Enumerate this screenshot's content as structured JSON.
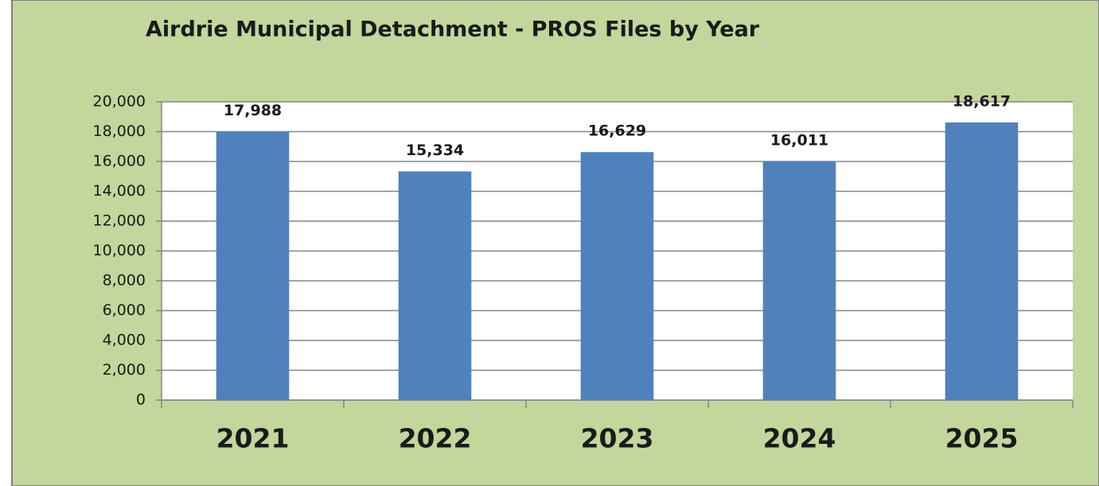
{
  "chart_data": {
    "type": "bar",
    "title": "Airdrie Municipal Detachment - PROS Files by Year",
    "categories": [
      "2021",
      "2022",
      "2023",
      "2024",
      "2025"
    ],
    "values": [
      17988,
      15334,
      16629,
      16011,
      18617
    ],
    "value_labels": [
      "17,988",
      "15,334",
      "16,629",
      "16,011",
      "18,617"
    ],
    "color": "#4f81bd",
    "ylim": [
      0,
      20000
    ],
    "yticks": [
      0,
      {
        "value": 2000,
        "label": "2,000"
      },
      {
        "value": 4000,
        "label": "4,000"
      },
      {
        "value": 6000,
        "label": "6,000"
      },
      {
        "value": 8000,
        "label": "8,000"
      },
      {
        "value": 10000,
        "label": "10,000"
      },
      {
        "value": 12000,
        "label": "12,000"
      },
      {
        "value": 14000,
        "label": "14,000"
      },
      {
        "value": 16000,
        "label": "16,000"
      },
      {
        "value": 18000,
        "label": "18,000"
      },
      {
        "value": 20000,
        "label": "20,000"
      }
    ],
    "grid": true
  }
}
